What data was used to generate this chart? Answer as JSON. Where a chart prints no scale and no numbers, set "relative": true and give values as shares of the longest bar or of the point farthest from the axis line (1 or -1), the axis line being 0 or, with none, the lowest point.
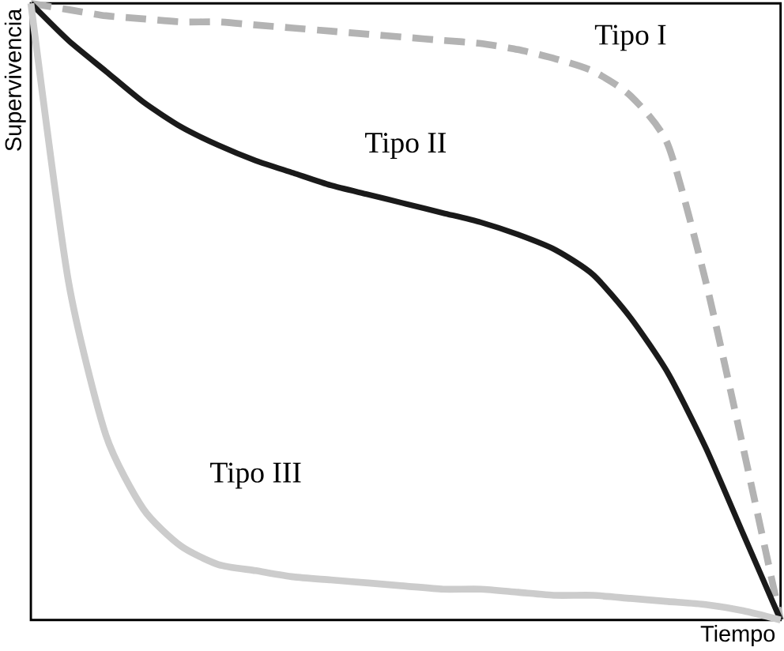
{
  "chart_data": {
    "type": "line",
    "relative": true,
    "xlabel": "Tiempo",
    "ylabel": "Supervivencia",
    "marker": "none",
    "categories": [
      null,
      null,
      null,
      null,
      null,
      null,
      null,
      null,
      null,
      null,
      null,
      null,
      null,
      null,
      null,
      null,
      null,
      null,
      null,
      null,
      null
    ],
    "series": [
      {
        "name": "Tipo I",
        "color": "#b3b3b3",
        "line_style": "dashed",
        "values": [
          1,
          0.99,
          0.98,
          0.975,
          0.97,
          0.97,
          0.965,
          0.96,
          0.955,
          0.95,
          0.945,
          0.94,
          0.935,
          0.925,
          0.91,
          0.89,
          0.85,
          0.77,
          0.55,
          0.28,
          0
        ]
      },
      {
        "name": "Tipo II",
        "color": "#1a1a1a",
        "line_style": "solid",
        "values": [
          1,
          0.94,
          0.89,
          0.84,
          0.8,
          0.77,
          0.745,
          0.725,
          0.705,
          0.69,
          0.675,
          0.66,
          0.645,
          0.625,
          0.6,
          0.56,
          0.49,
          0.4,
          0.28,
          0.14,
          0
        ]
      },
      {
        "name": "Tipo III",
        "color": "#cccccc",
        "line_style": "solid",
        "values": [
          1,
          0.55,
          0.3,
          0.18,
          0.12,
          0.09,
          0.08,
          0.07,
          0.065,
          0.06,
          0.055,
          0.05,
          0.05,
          0.045,
          0.04,
          0.04,
          0.035,
          0.03,
          0.025,
          0.015,
          0
        ]
      }
    ]
  }
}
